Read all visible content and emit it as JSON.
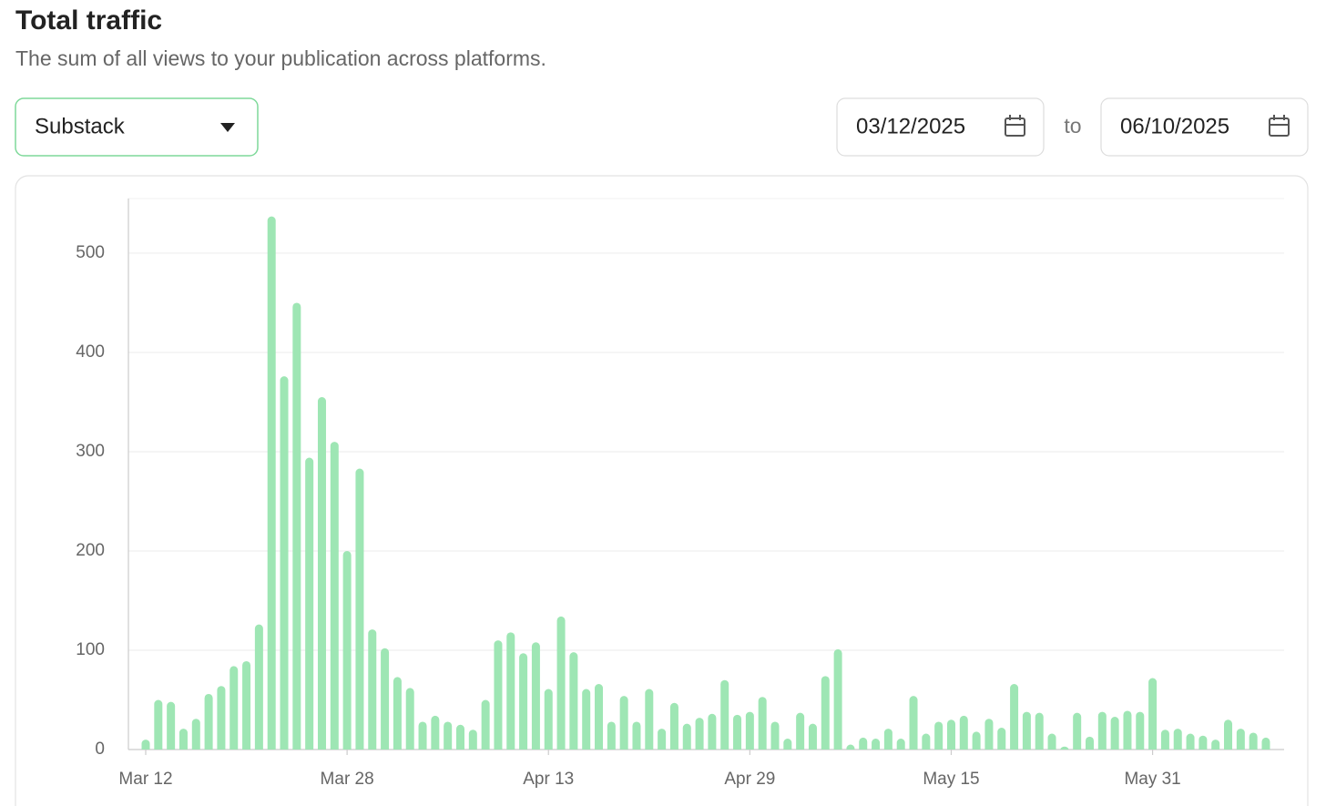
{
  "header": {
    "title": "Total traffic",
    "subtitle": "The sum of all views to your publication across platforms."
  },
  "controls": {
    "platform": "Substack",
    "start_date": "03/12/2025",
    "to": "to",
    "end_date": "06/10/2025"
  },
  "chart_data": {
    "type": "bar",
    "color": "#9ee6b4",
    "categories": [
      "Mar 12",
      null,
      null,
      null,
      null,
      null,
      null,
      null,
      null,
      null,
      null,
      null,
      null,
      null,
      null,
      null,
      "Mar 28",
      null,
      null,
      null,
      null,
      null,
      null,
      null,
      null,
      null,
      null,
      null,
      null,
      null,
      null,
      null,
      "Apr 13",
      null,
      null,
      null,
      null,
      null,
      null,
      null,
      null,
      null,
      null,
      null,
      null,
      null,
      null,
      null,
      "Apr 29",
      null,
      null,
      null,
      null,
      null,
      null,
      null,
      null,
      null,
      null,
      null,
      null,
      null,
      null,
      null,
      "May 15",
      null,
      null,
      null,
      null,
      null,
      null,
      null,
      null,
      null,
      null,
      null,
      null,
      null,
      null,
      null,
      "May 31",
      null,
      null,
      null,
      null,
      null,
      null,
      null,
      null,
      null
    ],
    "values": [
      10,
      50,
      48,
      21,
      31,
      56,
      64,
      84,
      89,
      126,
      537,
      376,
      450,
      294,
      355,
      310,
      200,
      283,
      121,
      102,
      73,
      62,
      28,
      34,
      28,
      25,
      20,
      50,
      110,
      118,
      97,
      108,
      61,
      134,
      98,
      61,
      66,
      28,
      54,
      28,
      61,
      21,
      47,
      26,
      32,
      36,
      70,
      35,
      38,
      53,
      28,
      11,
      37,
      26,
      74,
      101,
      5,
      12,
      11,
      21,
      11,
      54,
      16,
      28,
      30,
      34,
      18,
      31,
      22,
      66,
      38,
      37,
      16,
      3,
      37,
      13,
      38,
      33,
      39,
      38,
      72,
      20,
      21,
      16,
      14,
      10,
      30,
      21,
      17,
      12
    ],
    "ylim": [
      0,
      555
    ],
    "yticks": [
      0,
      100,
      200,
      300,
      400,
      500
    ],
    "grid": true
  }
}
